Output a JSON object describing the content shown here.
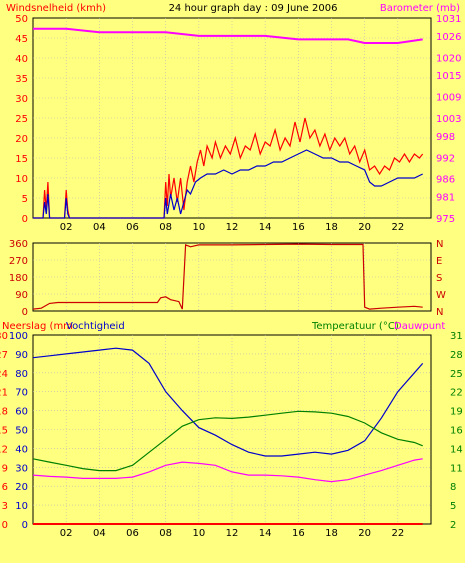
{
  "header": {
    "left_label": "Windsnelheid (kmh)",
    "title": "24 hour graph day : 09 June 2006",
    "right_label": "Barometer (mb)"
  },
  "chart_data": [
    {
      "id": "wind-baro",
      "type": "line",
      "x_ticks": [
        "02",
        "04",
        "06",
        "08",
        "10",
        "12",
        "14",
        "16",
        "18",
        "20",
        "22"
      ],
      "xlim": [
        0,
        24
      ],
      "y_left": {
        "label": "Windsnelheid (kmh)",
        "ticks": [
          0,
          5,
          10,
          15,
          20,
          25,
          30,
          35,
          40,
          45,
          50
        ],
        "range": [
          0,
          50
        ]
      },
      "y_right": {
        "label": "Barometer (mb)",
        "ticks": [
          975,
          981,
          986,
          992,
          998,
          1003,
          1009,
          1015,
          1020,
          1026,
          1031
        ],
        "range": [
          975,
          1031
        ]
      },
      "grid": true,
      "series": [
        {
          "name": "gust",
          "axis": "left",
          "color": "#FF0000",
          "points": [
            [
              0,
              0
            ],
            [
              0.6,
              0
            ],
            [
              0.7,
              7
            ],
            [
              0.8,
              2
            ],
            [
              0.9,
              9
            ],
            [
              1.0,
              0
            ],
            [
              1.9,
              0
            ],
            [
              2.0,
              7
            ],
            [
              2.1,
              2
            ],
            [
              2.2,
              0
            ],
            [
              7.9,
              0
            ],
            [
              8.0,
              9
            ],
            [
              8.1,
              3
            ],
            [
              8.2,
              11
            ],
            [
              8.3,
              5
            ],
            [
              8.5,
              10
            ],
            [
              8.7,
              4
            ],
            [
              8.9,
              10
            ],
            [
              9.1,
              2
            ],
            [
              9.3,
              9
            ],
            [
              9.5,
              13
            ],
            [
              9.7,
              9
            ],
            [
              9.9,
              14
            ],
            [
              10.1,
              17
            ],
            [
              10.3,
              13
            ],
            [
              10.5,
              18
            ],
            [
              10.8,
              15
            ],
            [
              11.0,
              19
            ],
            [
              11.3,
              15
            ],
            [
              11.6,
              18
            ],
            [
              11.9,
              16
            ],
            [
              12.2,
              20
            ],
            [
              12.5,
              15
            ],
            [
              12.8,
              18
            ],
            [
              13.1,
              17
            ],
            [
              13.4,
              21
            ],
            [
              13.7,
              16
            ],
            [
              14.0,
              19
            ],
            [
              14.3,
              18
            ],
            [
              14.6,
              22
            ],
            [
              14.9,
              17
            ],
            [
              15.2,
              20
            ],
            [
              15.5,
              18
            ],
            [
              15.8,
              24
            ],
            [
              16.1,
              19
            ],
            [
              16.4,
              25
            ],
            [
              16.7,
              20
            ],
            [
              17.0,
              22
            ],
            [
              17.3,
              18
            ],
            [
              17.6,
              21
            ],
            [
              17.9,
              17
            ],
            [
              18.2,
              20
            ],
            [
              18.5,
              18
            ],
            [
              18.8,
              20
            ],
            [
              19.1,
              16
            ],
            [
              19.4,
              18
            ],
            [
              19.7,
              14
            ],
            [
              20.0,
              17
            ],
            [
              20.3,
              12
            ],
            [
              20.6,
              13
            ],
            [
              20.9,
              11
            ],
            [
              21.2,
              13
            ],
            [
              21.5,
              12
            ],
            [
              21.8,
              15
            ],
            [
              22.1,
              14
            ],
            [
              22.4,
              16
            ],
            [
              22.7,
              14
            ],
            [
              23.0,
              16
            ],
            [
              23.3,
              15
            ],
            [
              23.5,
              16
            ]
          ]
        },
        {
          "name": "avg",
          "axis": "left",
          "color": "#0000CC",
          "points": [
            [
              0,
              0
            ],
            [
              0.6,
              0
            ],
            [
              0.7,
              4
            ],
            [
              0.8,
              1
            ],
            [
              0.9,
              6
            ],
            [
              1.0,
              0
            ],
            [
              1.9,
              0
            ],
            [
              2.0,
              5
            ],
            [
              2.1,
              1
            ],
            [
              2.2,
              0
            ],
            [
              7.9,
              0
            ],
            [
              8.0,
              5
            ],
            [
              8.1,
              1
            ],
            [
              8.3,
              6
            ],
            [
              8.5,
              2
            ],
            [
              8.7,
              5
            ],
            [
              8.9,
              1
            ],
            [
              9.1,
              4
            ],
            [
              9.3,
              7
            ],
            [
              9.5,
              6
            ],
            [
              9.8,
              9
            ],
            [
              10.1,
              10
            ],
            [
              10.5,
              11
            ],
            [
              11.0,
              11
            ],
            [
              11.5,
              12
            ],
            [
              12.0,
              11
            ],
            [
              12.5,
              12
            ],
            [
              13.0,
              12
            ],
            [
              13.5,
              13
            ],
            [
              14.0,
              13
            ],
            [
              14.5,
              14
            ],
            [
              15.0,
              14
            ],
            [
              15.5,
              15
            ],
            [
              16.0,
              16
            ],
            [
              16.5,
              17
            ],
            [
              17.0,
              16
            ],
            [
              17.5,
              15
            ],
            [
              18.0,
              15
            ],
            [
              18.5,
              14
            ],
            [
              19.0,
              14
            ],
            [
              19.5,
              13
            ],
            [
              20.0,
              12
            ],
            [
              20.3,
              9
            ],
            [
              20.6,
              8
            ],
            [
              21.0,
              8
            ],
            [
              21.5,
              9
            ],
            [
              22.0,
              10
            ],
            [
              22.5,
              10
            ],
            [
              23.0,
              10
            ],
            [
              23.5,
              11
            ]
          ]
        },
        {
          "name": "baro",
          "axis": "right",
          "color": "#FF00FF",
          "points": [
            [
              0,
              1028
            ],
            [
              2,
              1028
            ],
            [
              4,
              1027
            ],
            [
              6,
              1027
            ],
            [
              8,
              1027
            ],
            [
              10,
              1026
            ],
            [
              12,
              1026
            ],
            [
              14,
              1026
            ],
            [
              16,
              1025
            ],
            [
              18,
              1025
            ],
            [
              19,
              1025
            ],
            [
              20,
              1024
            ],
            [
              21,
              1024
            ],
            [
              22,
              1024
            ],
            [
              23.5,
              1025
            ]
          ]
        }
      ]
    },
    {
      "id": "winddir",
      "type": "line",
      "xlim": [
        0,
        24
      ],
      "y_left": {
        "ticks": [
          0,
          90,
          180,
          270,
          360
        ],
        "range": [
          0,
          360
        ]
      },
      "y_right": {
        "ticks": [
          "N",
          "W",
          "S",
          "E",
          "N"
        ]
      },
      "series": [
        {
          "name": "direction",
          "color": "#CC0000",
          "points": [
            [
              0,
              10
            ],
            [
              0.5,
              15
            ],
            [
              1,
              40
            ],
            [
              1.5,
              45
            ],
            [
              7.5,
              45
            ],
            [
              7.7,
              70
            ],
            [
              8,
              75
            ],
            [
              8.3,
              60
            ],
            [
              8.8,
              50
            ],
            [
              9.0,
              10
            ],
            [
              9.2,
              350
            ],
            [
              9.5,
              340
            ],
            [
              10,
              350
            ],
            [
              12,
              350
            ],
            [
              14,
              352
            ],
            [
              16,
              354
            ],
            [
              18,
              352
            ],
            [
              19.9,
              352
            ],
            [
              20.0,
              20
            ],
            [
              20.3,
              10
            ],
            [
              21,
              15
            ],
            [
              22,
              20
            ],
            [
              23,
              25
            ],
            [
              23.5,
              20
            ]
          ]
        }
      ]
    },
    {
      "id": "rain-hum-temp",
      "type": "line",
      "header_left": "Neerslag (mm Vochtigheid",
      "header_right": "Temperatuur (°C) Dauwpunt",
      "xlim": [
        0,
        24
      ],
      "x_ticks": [
        "02",
        "04",
        "06",
        "08",
        "10",
        "12",
        "14",
        "16",
        "18",
        "20",
        "22"
      ],
      "y_left_a": {
        "label": "Neerslag (mm",
        "ticks": [
          0,
          3,
          6,
          9,
          12,
          15,
          18,
          21,
          24,
          27,
          30
        ],
        "range": [
          0,
          30
        ]
      },
      "y_left_b": {
        "label": "Vochtigheid",
        "ticks": [
          0,
          10,
          20,
          30,
          40,
          50,
          60,
          70,
          80,
          90,
          100
        ],
        "range": [
          0,
          100
        ]
      },
      "y_right": {
        "label": "Temperatuur (°C) Dauwpunt",
        "ticks": [
          2,
          5,
          8,
          11,
          14,
          16,
          19,
          22,
          25,
          28,
          31
        ],
        "range": [
          2,
          31
        ]
      },
      "series": [
        {
          "name": "humidity",
          "axis": "left_b",
          "color": "#0000CC",
          "points": [
            [
              0,
              88
            ],
            [
              1,
              89
            ],
            [
              2,
              90
            ],
            [
              3,
              91
            ],
            [
              4,
              92
            ],
            [
              5,
              93
            ],
            [
              6,
              92
            ],
            [
              7,
              85
            ],
            [
              8,
              70
            ],
            [
              9,
              60
            ],
            [
              10,
              51
            ],
            [
              11,
              47
            ],
            [
              12,
              42
            ],
            [
              13,
              38
            ],
            [
              14,
              36
            ],
            [
              15,
              36
            ],
            [
              16,
              37
            ],
            [
              17,
              38
            ],
            [
              18,
              37
            ],
            [
              19,
              39
            ],
            [
              20,
              44
            ],
            [
              21,
              56
            ],
            [
              22,
              70
            ],
            [
              23,
              80
            ],
            [
              23.5,
              85
            ]
          ]
        },
        {
          "name": "temperature",
          "axis": "right",
          "color": "#008000",
          "points": [
            [
              0,
              12
            ],
            [
              1,
              11.5
            ],
            [
              2,
              11
            ],
            [
              3,
              10.5
            ],
            [
              4,
              10.2
            ],
            [
              5,
              10.2
            ],
            [
              6,
              11
            ],
            [
              7,
              13
            ],
            [
              8,
              15
            ],
            [
              9,
              17
            ],
            [
              10,
              18
            ],
            [
              11,
              18.3
            ],
            [
              12,
              18.2
            ],
            [
              13,
              18.4
            ],
            [
              14,
              18.7
            ],
            [
              15,
              19
            ],
            [
              16,
              19.3
            ],
            [
              17,
              19.2
            ],
            [
              18,
              19
            ],
            [
              19,
              18.5
            ],
            [
              20,
              17.5
            ],
            [
              21,
              16
            ],
            [
              22,
              15
            ],
            [
              23,
              14.5
            ],
            [
              23.5,
              14
            ]
          ]
        },
        {
          "name": "dewpoint",
          "axis": "right",
          "color": "#FF00FF",
          "points": [
            [
              0,
              9.5
            ],
            [
              1,
              9.3
            ],
            [
              2,
              9.2
            ],
            [
              3,
              9
            ],
            [
              4,
              9
            ],
            [
              5,
              9
            ],
            [
              6,
              9.2
            ],
            [
              7,
              10
            ],
            [
              8,
              11
            ],
            [
              9,
              11.5
            ],
            [
              10,
              11.3
            ],
            [
              11,
              11
            ],
            [
              12,
              10
            ],
            [
              13,
              9.5
            ],
            [
              14,
              9.5
            ],
            [
              15,
              9.4
            ],
            [
              16,
              9.2
            ],
            [
              17,
              8.8
            ],
            [
              18,
              8.5
            ],
            [
              19,
              8.8
            ],
            [
              20,
              9.5
            ],
            [
              21,
              10.2
            ],
            [
              22,
              11
            ],
            [
              23,
              11.8
            ],
            [
              23.5,
              12
            ]
          ]
        },
        {
          "name": "rain",
          "axis": "left_a",
          "color": "#FF0000",
          "points": [
            [
              0,
              0
            ],
            [
              23.5,
              0
            ]
          ]
        }
      ]
    }
  ]
}
